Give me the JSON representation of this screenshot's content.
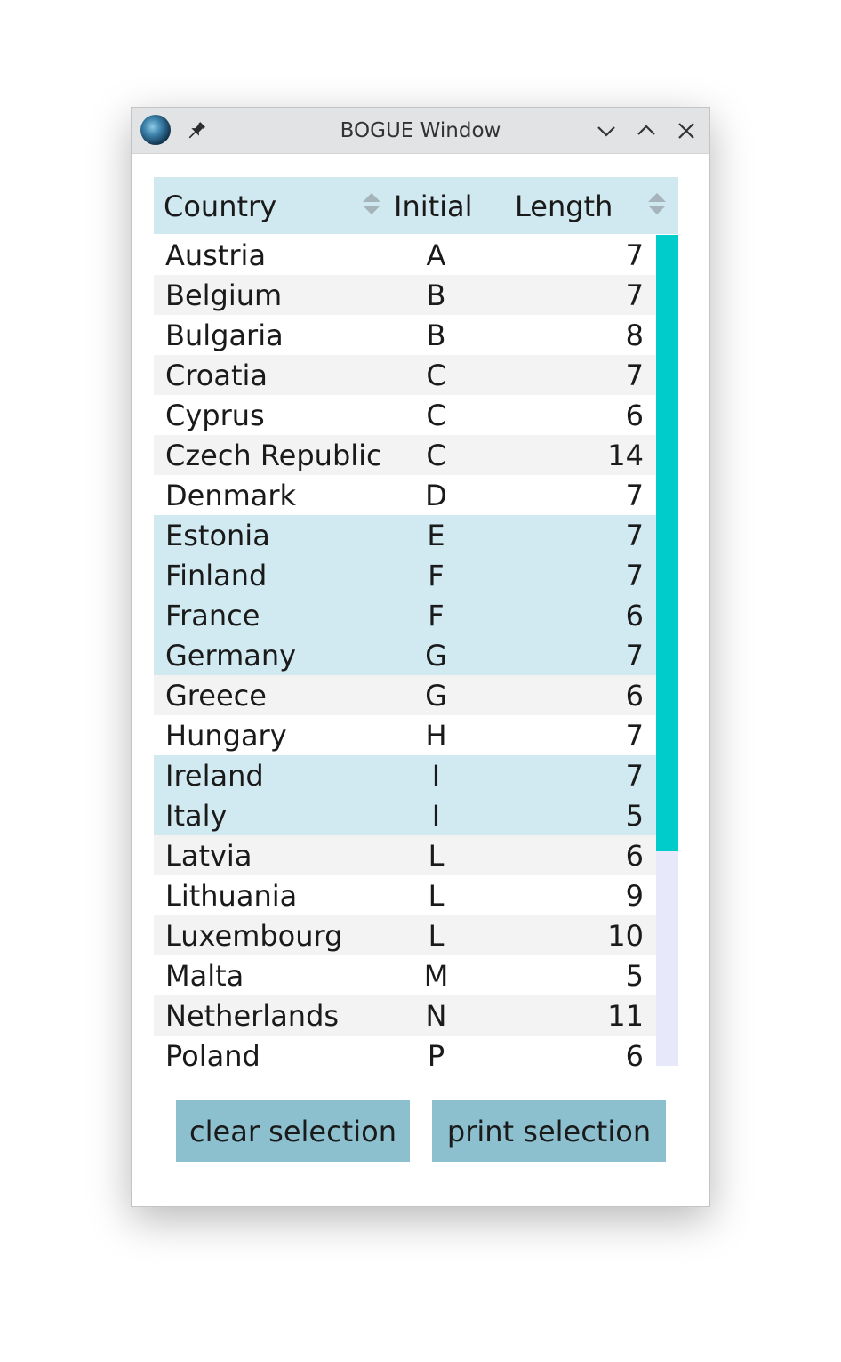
{
  "window": {
    "title": "BOGUE Window"
  },
  "titlebar": {
    "icons": [
      "app-icon",
      "pin-icon",
      "minimize-icon",
      "maximize-icon",
      "close-icon"
    ]
  },
  "table": {
    "columns": [
      {
        "label": "Country",
        "sortable": true
      },
      {
        "label": "Initial",
        "sortable": false
      },
      {
        "label": "Length",
        "sortable": true
      }
    ],
    "rows": [
      {
        "country": "Austria",
        "initial": "A",
        "length": "7",
        "selected": false
      },
      {
        "country": "Belgium",
        "initial": "B",
        "length": "7",
        "selected": false
      },
      {
        "country": "Bulgaria",
        "initial": "B",
        "length": "8",
        "selected": false
      },
      {
        "country": "Croatia",
        "initial": "C",
        "length": "7",
        "selected": false
      },
      {
        "country": "Cyprus",
        "initial": "C",
        "length": "6",
        "selected": false
      },
      {
        "country": "Czech Republic",
        "initial": "C",
        "length": "14",
        "selected": false
      },
      {
        "country": "Denmark",
        "initial": "D",
        "length": "7",
        "selected": false
      },
      {
        "country": "Estonia",
        "initial": "E",
        "length": "7",
        "selected": true
      },
      {
        "country": "Finland",
        "initial": "F",
        "length": "7",
        "selected": true
      },
      {
        "country": "France",
        "initial": "F",
        "length": "6",
        "selected": true
      },
      {
        "country": "Germany",
        "initial": "G",
        "length": "7",
        "selected": true
      },
      {
        "country": "Greece",
        "initial": "G",
        "length": "6",
        "selected": false
      },
      {
        "country": "Hungary",
        "initial": "H",
        "length": "7",
        "selected": false
      },
      {
        "country": "Ireland",
        "initial": "I",
        "length": "7",
        "selected": true
      },
      {
        "country": "Italy",
        "initial": "I",
        "length": "5",
        "selected": true
      },
      {
        "country": "Latvia",
        "initial": "L",
        "length": "6",
        "selected": false
      },
      {
        "country": "Lithuania",
        "initial": "L",
        "length": "9",
        "selected": false
      },
      {
        "country": "Luxembourg",
        "initial": "L",
        "length": "10",
        "selected": false
      },
      {
        "country": "Malta",
        "initial": "M",
        "length": "5",
        "selected": false
      },
      {
        "country": "Netherlands",
        "initial": "N",
        "length": "11",
        "selected": false
      },
      {
        "country": "Poland",
        "initial": "P",
        "length": "6",
        "selected": false
      }
    ],
    "scrollbar": {
      "thumb_fraction": 0.742,
      "position_fraction": 0
    }
  },
  "buttons": {
    "clear_label": "clear selection",
    "print_label": "print selection"
  },
  "colors": {
    "header_bg": "#d0e8ef",
    "selected_row": "#d1eaf1",
    "scroll_thumb": "#00cccc",
    "scroll_track": "#e8e8fb",
    "button_bg": "#8cc0cf"
  }
}
